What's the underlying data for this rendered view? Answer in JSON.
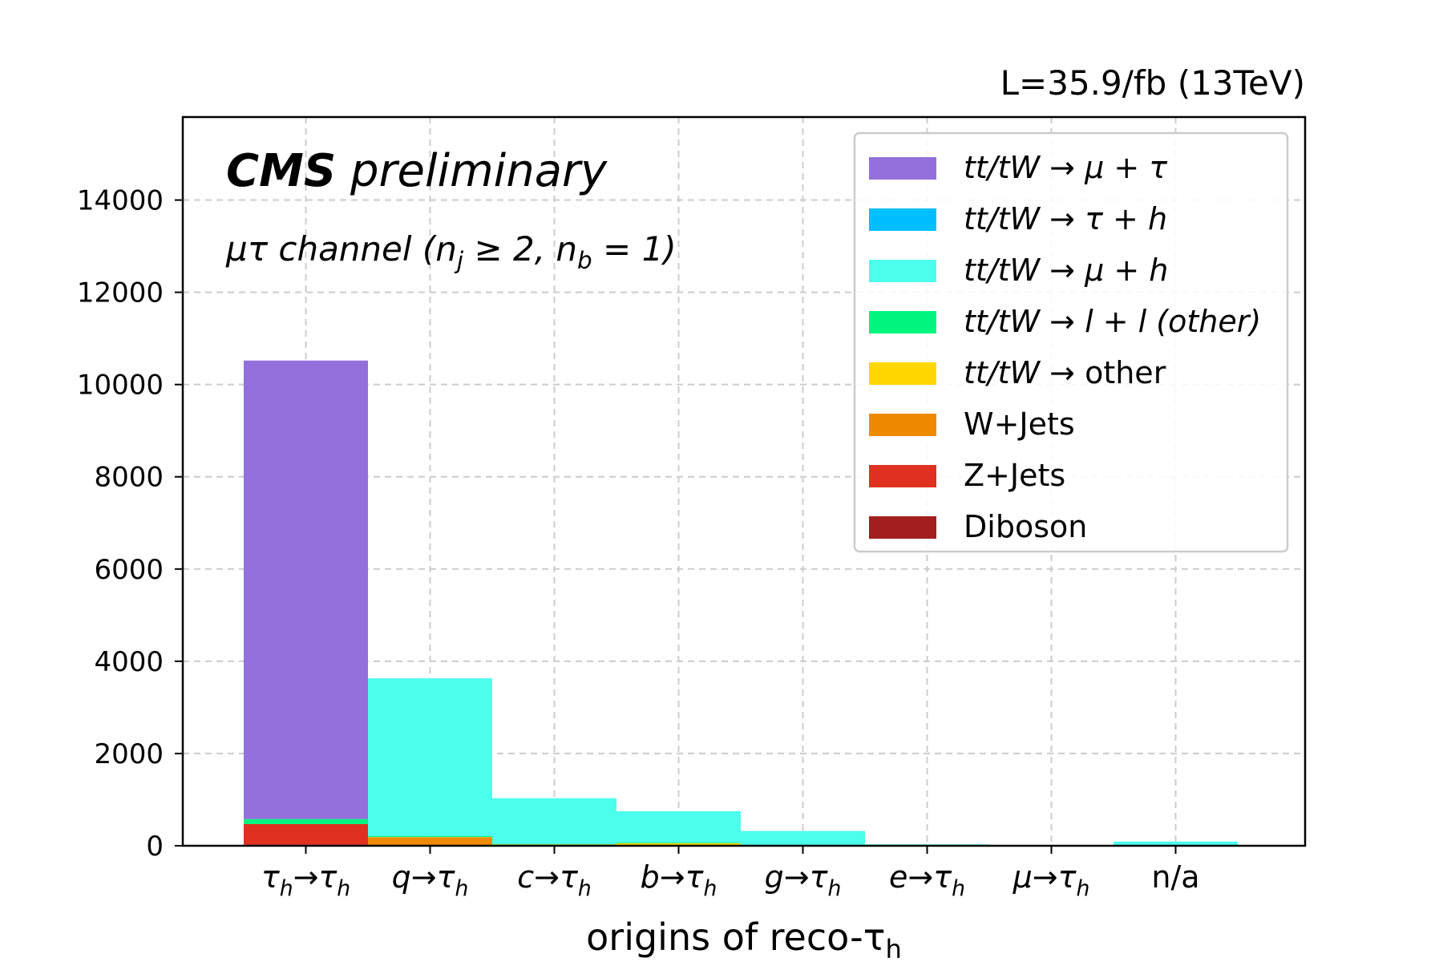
{
  "chart_data": {
    "type": "bar",
    "stacked": true,
    "title": "",
    "lumi_label": "L=35.9/fb (13TeV)",
    "cms_label": "CMS",
    "cms_sublabel": "preliminary",
    "channel_label": "μτ channel (n_j ≥ 2, n_b = 1)",
    "xlabel": "origins of reco-τ_h",
    "ylabel": "",
    "ylim": [
      0,
      15800
    ],
    "yticks": [
      0,
      2000,
      4000,
      6000,
      8000,
      10000,
      12000,
      14000
    ],
    "grid": true,
    "legend_position": "top-right",
    "categories": [
      "τ_h→τ_h",
      "q→τ_h",
      "c→τ_h",
      "b→τ_h",
      "g→τ_h",
      "e→τ_h",
      "μ→τ_h",
      "n/a"
    ],
    "series": [
      {
        "name": "Diboson",
        "color": "#a31f1f",
        "values": [
          20,
          5,
          0,
          0,
          0,
          0,
          0,
          0
        ]
      },
      {
        "name": "Z+Jets",
        "color": "#e03020",
        "values": [
          450,
          10,
          5,
          5,
          0,
          0,
          0,
          0
        ]
      },
      {
        "name": "W+Jets",
        "color": "#ee8a00",
        "values": [
          0,
          170,
          20,
          10,
          5,
          0,
          0,
          0
        ]
      },
      {
        "name": "tt/tW → other",
        "color": "#ffd700",
        "values": [
          0,
          5,
          5,
          40,
          5,
          0,
          0,
          0
        ]
      },
      {
        "name": "tt/tW → l + l (other)",
        "color": "#00f57f",
        "values": [
          110,
          20,
          10,
          20,
          5,
          5,
          0,
          0
        ]
      },
      {
        "name": "tt/tW → μ + h",
        "color": "#4cfeec",
        "values": [
          0,
          3420,
          990,
          675,
          305,
          25,
          0,
          90
        ]
      },
      {
        "name": "tt/tW → τ + h",
        "color": "#00bfff",
        "values": [
          0,
          0,
          0,
          0,
          0,
          0,
          0,
          0
        ]
      },
      {
        "name": "tt/tW → μ + τ",
        "color": "#9370db",
        "values": [
          9940,
          0,
          0,
          0,
          0,
          0,
          0,
          0
        ]
      }
    ],
    "legend_order": [
      "tt/tW → μ + τ",
      "tt/tW → τ + h",
      "tt/tW → μ + h",
      "tt/tW → l + l (other)",
      "tt/tW → other",
      "W+Jets",
      "Z+Jets",
      "Diboson"
    ]
  }
}
